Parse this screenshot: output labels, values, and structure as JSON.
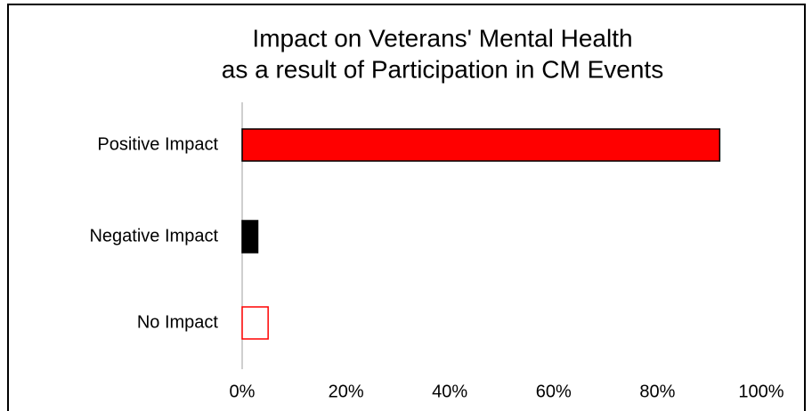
{
  "chart_data": {
    "type": "bar",
    "orientation": "horizontal",
    "title": [
      "Impact on Veterans' Mental Health",
      "as a result of Participation in CM Events"
    ],
    "categories": [
      "Positive Impact",
      "Negative Impact",
      "No Impact"
    ],
    "values": [
      92,
      3,
      5
    ],
    "colors": [
      "#ff0000",
      "#000000",
      "#ffffff"
    ],
    "edgecolors": [
      "#000000",
      "#000000",
      "#ff0000"
    ],
    "xlim": [
      0,
      100
    ],
    "xticks": [
      {
        "value": 0,
        "label": "0%"
      },
      {
        "value": 20,
        "label": "20%"
      },
      {
        "value": 40,
        "label": "40%"
      },
      {
        "value": 60,
        "label": "60%"
      },
      {
        "value": 80,
        "label": "80%"
      },
      {
        "value": 100,
        "label": "100%"
      }
    ],
    "grid": false
  }
}
